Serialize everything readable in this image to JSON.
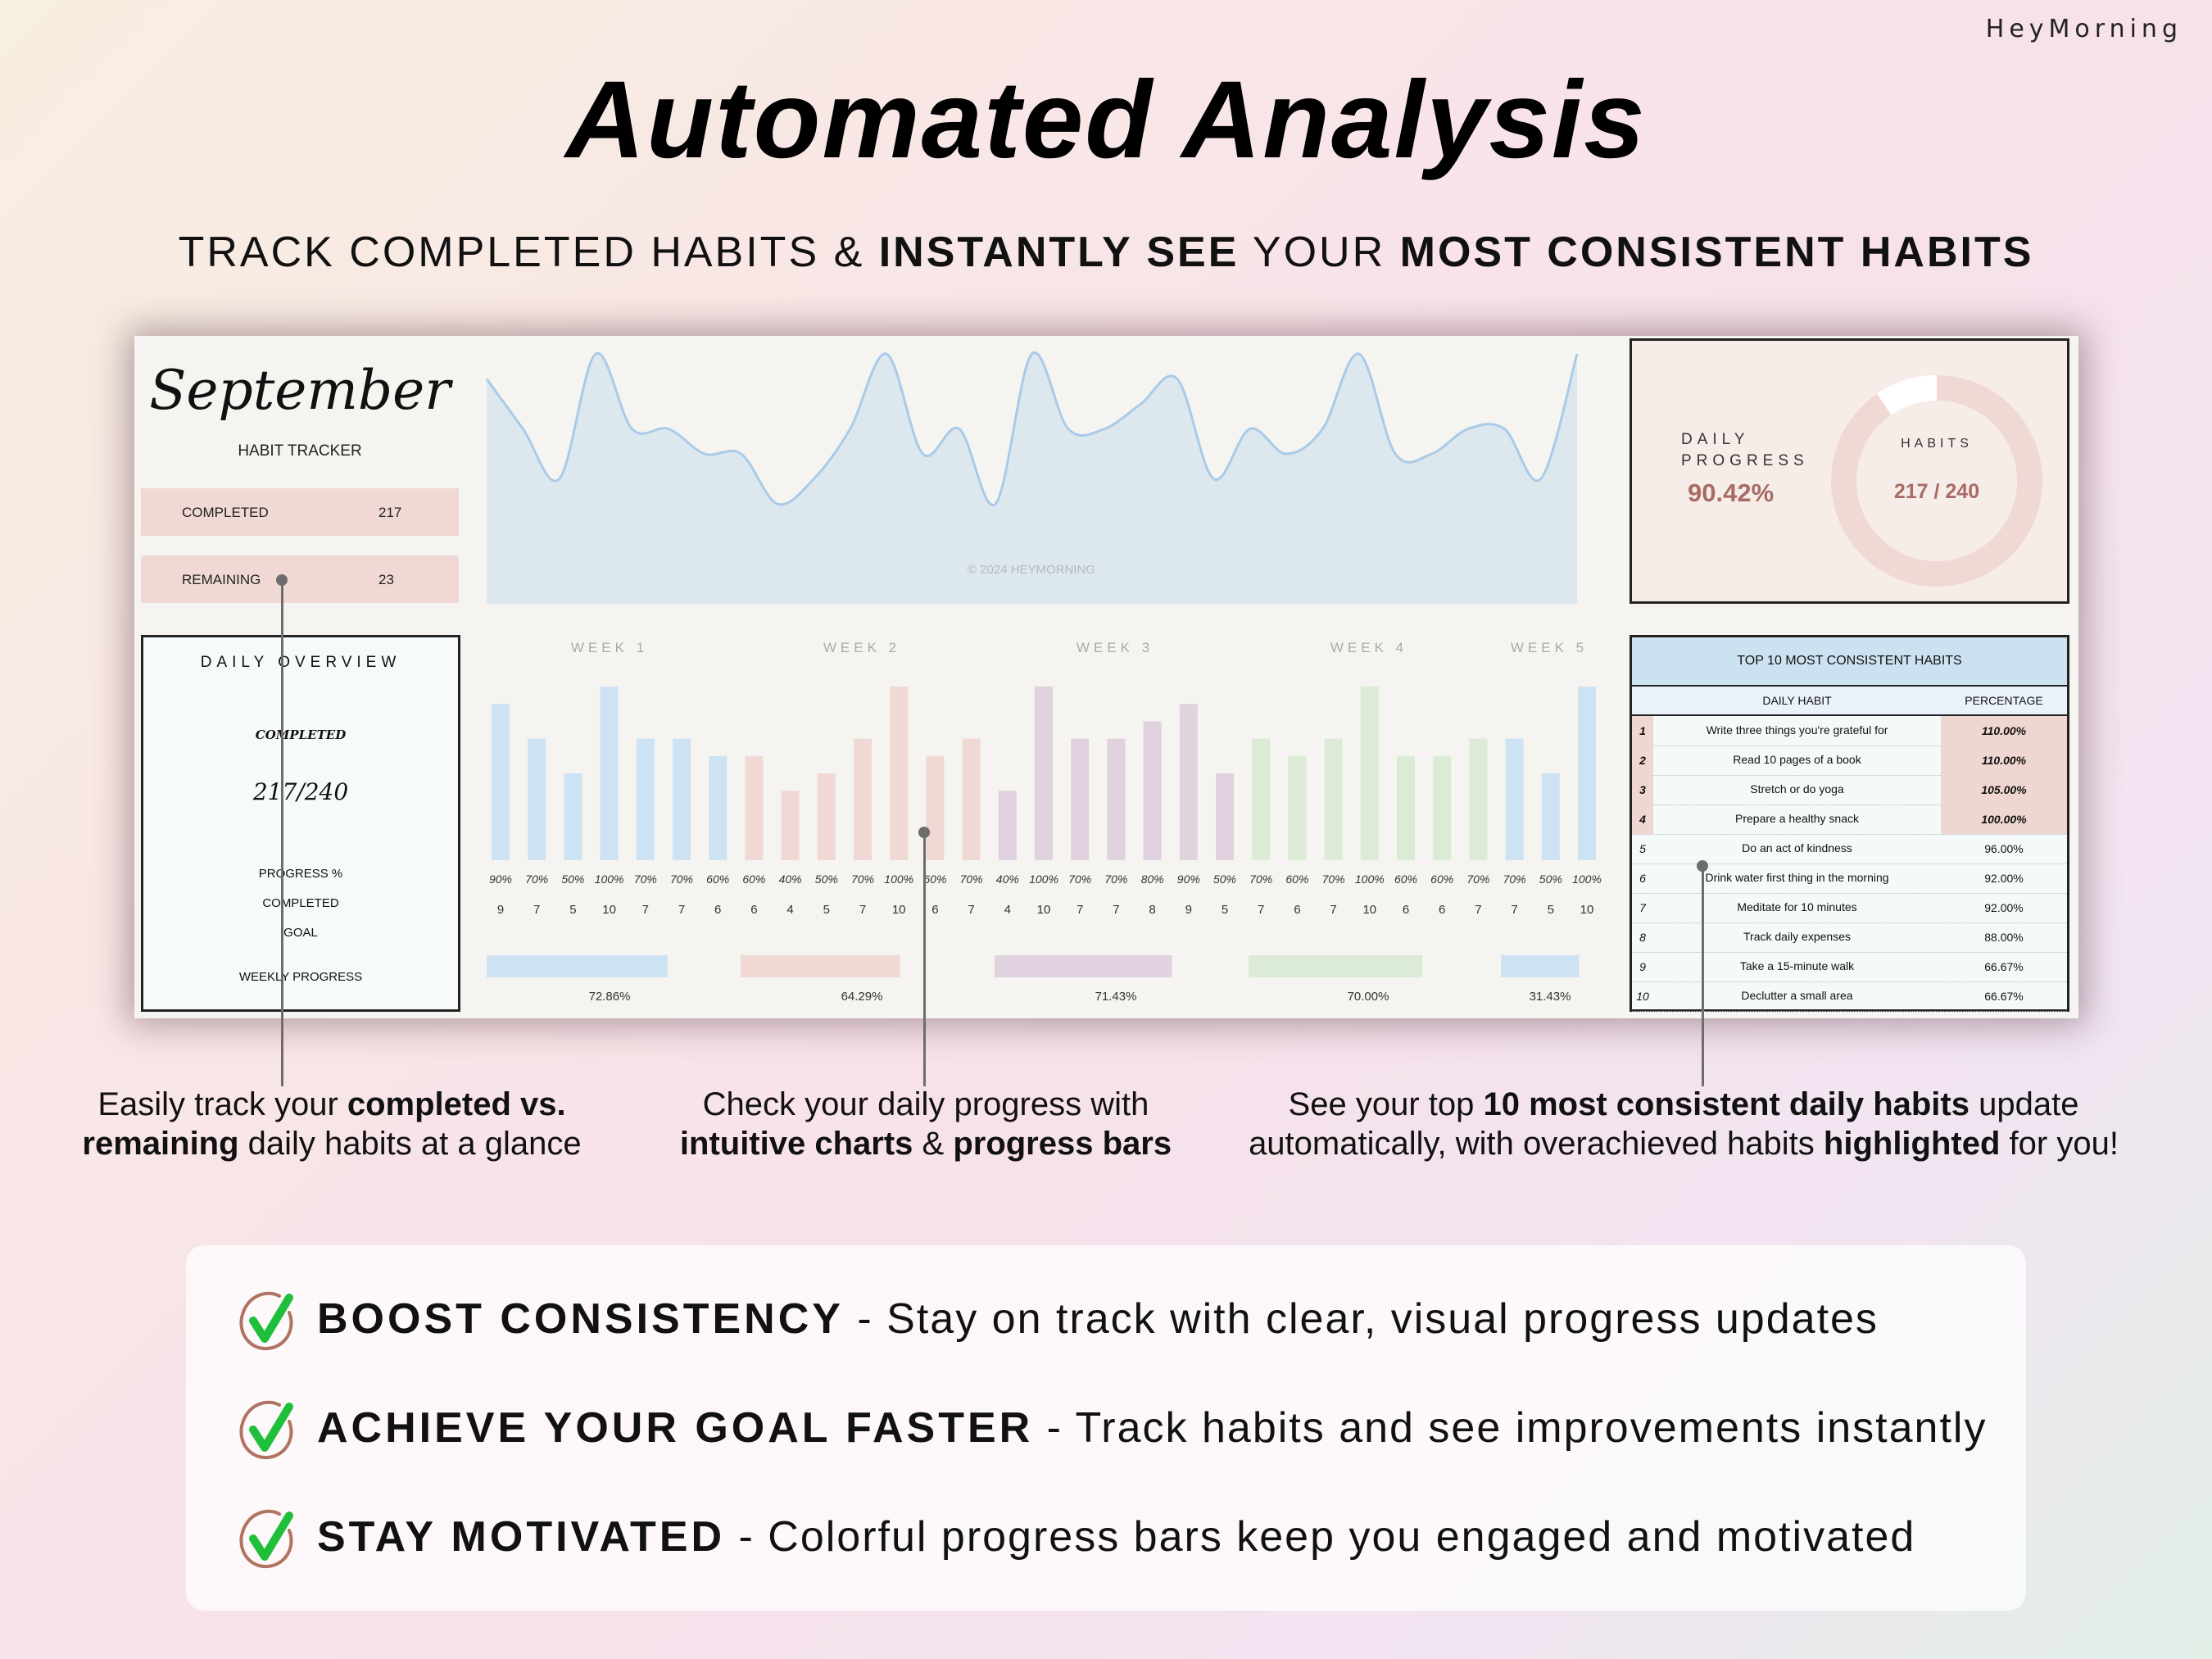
{
  "brand": "HeyMorning",
  "title": "Automated Analysis",
  "subtitle": [
    {
      "text": "TRACK COMPLETED HABITS & ",
      "bold": false
    },
    {
      "text": "INSTANTLY SEE",
      "bold": true
    },
    {
      "text": " YOUR ",
      "bold": false
    },
    {
      "text": "MOST CONSISTENT HABITS",
      "bold": true
    }
  ],
  "tracker": {
    "month": "September",
    "subtitle": "HABIT TRACKER",
    "completed_label": "COMPLETED",
    "completed_value": "217",
    "remaining_label": "REMAINING",
    "remaining_value": "23",
    "overview": {
      "title": "DAILY OVERVIEW",
      "completed_label": "COMPLETED",
      "fraction": "217/240",
      "progress_label": "PROGRESS %",
      "completed_row": "COMPLETED",
      "goal": "GOAL",
      "weekly": "WEEKLY PROGRESS"
    },
    "watermark": "© 2024 HEYMORNING",
    "daily_progress_label": "DAILY PROGRESS",
    "daily_progress_value": "90.42%",
    "habits_label": "HABITS",
    "habits_value": "217 / 240",
    "donut_fraction": 0.9042,
    "colors": {
      "week1": "#cde2f3",
      "week2": "#f0d9d4",
      "week3": "#e0d2de",
      "week4": "#dcebd6",
      "week5": "#cde2f3",
      "area_line": "#a9cbe8",
      "area_fill": "#dde7ee",
      "accent": "#a86b66"
    }
  },
  "chart_data": [
    {
      "type": "area",
      "x": [
        1,
        2,
        3,
        4,
        5,
        6,
        7,
        8,
        9,
        10,
        11,
        12,
        13,
        14,
        15,
        16,
        17,
        18,
        19,
        20,
        21,
        22,
        23,
        24,
        25,
        26,
        27,
        28,
        29,
        30,
        31
      ],
      "values": [
        9,
        7,
        5,
        10,
        7,
        7,
        6,
        6,
        4,
        5,
        7,
        10,
        6,
        7,
        4,
        10,
        7,
        7,
        8,
        9,
        5,
        7,
        6,
        7,
        10,
        6,
        6,
        7,
        7,
        5,
        10
      ],
      "ylim": [
        0,
        10
      ]
    },
    {
      "type": "bar",
      "week_labels": [
        "WEEK 1",
        "WEEK 2",
        "WEEK 3",
        "WEEK 4",
        "WEEK 5"
      ],
      "week_of_day": [
        1,
        1,
        1,
        1,
        1,
        1,
        1,
        2,
        2,
        2,
        2,
        2,
        2,
        2,
        3,
        3,
        3,
        3,
        3,
        3,
        3,
        4,
        4,
        4,
        4,
        4,
        4,
        4,
        5,
        5,
        5
      ],
      "values": [
        9,
        7,
        5,
        10,
        7,
        7,
        6,
        6,
        4,
        5,
        7,
        10,
        6,
        7,
        4,
        10,
        7,
        7,
        8,
        9,
        5,
        7,
        6,
        7,
        10,
        6,
        6,
        7,
        7,
        5,
        10
      ],
      "percent_labels": [
        "90%",
        "70%",
        "50%",
        "100%",
        "70%",
        "70%",
        "60%",
        "60%",
        "40%",
        "50%",
        "70%",
        "100%",
        "60%",
        "70%",
        "40%",
        "100%",
        "70%",
        "70%",
        "80%",
        "90%",
        "50%",
        "70%",
        "60%",
        "70%",
        "100%",
        "60%",
        "60%",
        "70%",
        "70%",
        "50%",
        "100%"
      ],
      "count_labels": [
        "9",
        "7",
        "5",
        "10",
        "7",
        "7",
        "6",
        "6",
        "4",
        "5",
        "7",
        "10",
        "6",
        "7",
        "4",
        "10",
        "7",
        "7",
        "8",
        "9",
        "5",
        "7",
        "6",
        "7",
        "10",
        "6",
        "6",
        "7",
        "7",
        "5",
        "10"
      ],
      "ylim": [
        0,
        10
      ]
    },
    {
      "type": "bar",
      "categories": [
        "WEEK 1",
        "WEEK 2",
        "WEEK 3",
        "WEEK 4",
        "WEEK 5"
      ],
      "values": [
        72.86,
        64.29,
        71.43,
        70.0,
        31.43
      ],
      "labels": [
        "72.86%",
        "64.29%",
        "71.43%",
        "70.00%",
        "31.43%"
      ],
      "ylim": [
        0,
        100
      ]
    }
  ],
  "top_habits": {
    "title": "TOP 10 MOST CONSISTENT HABITS",
    "col_habit": "DAILY HABIT",
    "col_pct": "PERCENTAGE",
    "rows": [
      {
        "rank": "1",
        "habit": "Write three things you're grateful for",
        "pct": "110.00%",
        "highlight": true
      },
      {
        "rank": "2",
        "habit": "Read 10 pages of a book",
        "pct": "110.00%",
        "highlight": true
      },
      {
        "rank": "3",
        "habit": "Stretch or do yoga",
        "pct": "105.00%",
        "highlight": true
      },
      {
        "rank": "4",
        "habit": "Prepare a healthy snack",
        "pct": "100.00%",
        "highlight": true
      },
      {
        "rank": "5",
        "habit": "Do an act of kindness",
        "pct": "96.00%",
        "highlight": false
      },
      {
        "rank": "6",
        "habit": "Drink water first thing in the morning",
        "pct": "92.00%",
        "highlight": false
      },
      {
        "rank": "7",
        "habit": "Meditate for 10 minutes",
        "pct": "92.00%",
        "highlight": false
      },
      {
        "rank": "8",
        "habit": "Track daily expenses",
        "pct": "88.00%",
        "highlight": false
      },
      {
        "rank": "9",
        "habit": "Take a 15-minute walk",
        "pct": "66.67%",
        "highlight": false
      },
      {
        "rank": "10",
        "habit": "Declutter a small area",
        "pct": "66.67%",
        "highlight": false
      }
    ]
  },
  "captions": [
    [
      [
        {
          "text": "Easily track your ",
          "bold": false
        },
        {
          "text": "completed vs.",
          "bold": true
        }
      ],
      [
        {
          "text": "remaining",
          "bold": true
        },
        {
          "text": " daily habits at a glance",
          "bold": false
        }
      ]
    ],
    [
      [
        {
          "text": "Check your daily progress with",
          "bold": false
        }
      ],
      [
        {
          "text": "intuitive charts",
          "bold": true
        },
        {
          "text": " & ",
          "bold": false
        },
        {
          "text": "progress bars",
          "bold": true
        }
      ]
    ],
    [
      [
        {
          "text": "See your top ",
          "bold": false
        },
        {
          "text": "10 most consistent daily habits",
          "bold": true
        },
        {
          "text": " update",
          "bold": false
        }
      ],
      [
        {
          "text": "automatically, with overachieved habits ",
          "bold": false
        },
        {
          "text": "highlighted",
          "bold": true
        },
        {
          "text": " for you!",
          "bold": false
        }
      ]
    ]
  ],
  "features": [
    {
      "title": "BOOST CONSISTENCY",
      "desc": " - Stay on track with clear, visual progress updates",
      "icon": "check-circle-icon"
    },
    {
      "title": "ACHIEVE YOUR GOAL FASTER",
      "desc": " - Track habits and see improvements instantly",
      "icon": "check-circle-icon"
    },
    {
      "title": "STAY MOTIVATED",
      "desc": " - Colorful progress bars keep you engaged and motivated",
      "icon": "check-circle-icon"
    }
  ]
}
